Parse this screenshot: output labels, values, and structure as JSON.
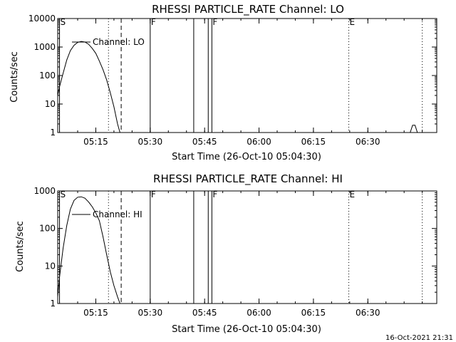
{
  "chart_data": [
    {
      "type": "line",
      "title": "RHESSI PARTICLE_RATE Channel: LO",
      "xlabel": "Start Time (26-Oct-10 05:04:30)",
      "ylabel": "Counts/sec",
      "yscale": "log",
      "ylim": [
        1,
        10000
      ],
      "xlim": [
        "05:04:30",
        "06:49:00"
      ],
      "x_ticks": [
        "05:15",
        "05:30",
        "05:45",
        "06:00",
        "06:15",
        "06:30"
      ],
      "y_ticks": [
        "1",
        "10",
        "100",
        "1000",
        "10000"
      ],
      "legend": {
        "position": "top-left",
        "entries": [
          "Channel: LO"
        ]
      },
      "series": [
        {
          "name": "Channel: LO",
          "x": [
            "05:04:30",
            "05:05:00",
            "05:06:00",
            "05:07:00",
            "05:08:00",
            "05:09:00",
            "05:10:00",
            "05:11:00",
            "05:12:00",
            "05:13:00",
            "05:14:00",
            "05:15:00",
            "05:16:00",
            "05:17:00",
            "05:18:00",
            "05:19:00",
            "05:20:00",
            "05:21:00",
            "05:21:40"
          ],
          "values": [
            20,
            40,
            120,
            350,
            750,
            1150,
            1450,
            1580,
            1500,
            1250,
            900,
            600,
            320,
            160,
            70,
            25,
            8,
            2,
            1
          ]
        },
        {
          "name": "",
          "x": [
            "06:41:40",
            "06:42:20",
            "06:43:00",
            "06:43:40"
          ],
          "values": [
            1,
            1.8,
            1.8,
            1
          ]
        }
      ],
      "event_markers": [
        {
          "label": "S",
          "time": "05:05:00",
          "style": "solid"
        },
        {
          "label": "",
          "time": "05:18:30",
          "style": "dotted"
        },
        {
          "label": "",
          "time": "05:22:00",
          "style": "dashed"
        },
        {
          "label": "F",
          "time": "05:30:00",
          "style": "solid"
        },
        {
          "label": "",
          "time": "05:42:00",
          "style": "solid"
        },
        {
          "label": "",
          "time": "05:46:00",
          "style": "solid"
        },
        {
          "label": "F",
          "time": "05:47:00",
          "style": "solid"
        },
        {
          "label": "E",
          "time": "06:24:45",
          "style": "dotted"
        },
        {
          "label": "",
          "time": "06:45:00",
          "style": "dotted"
        }
      ]
    },
    {
      "type": "line",
      "title": "RHESSI PARTICLE_RATE Channel: HI",
      "xlabel": "Start Time (26-Oct-10 05:04:30)",
      "ylabel": "Counts/sec",
      "yscale": "log",
      "ylim": [
        1,
        1000
      ],
      "xlim": [
        "05:04:30",
        "06:49:00"
      ],
      "x_ticks": [
        "05:15",
        "05:30",
        "05:45",
        "06:00",
        "06:15",
        "06:30"
      ],
      "y_ticks": [
        "1",
        "10",
        "100",
        "1000"
      ],
      "legend": {
        "position": "top-left",
        "entries": [
          "Channel: HI"
        ]
      },
      "series": [
        {
          "name": "Channel: HI",
          "x": [
            "05:04:30",
            "05:05:00",
            "05:06:00",
            "05:07:00",
            "05:08:00",
            "05:09:00",
            "05:10:00",
            "05:11:00",
            "05:12:00",
            "05:13:00",
            "05:14:00",
            "05:15:00",
            "05:16:00",
            "05:17:00",
            "05:18:00",
            "05:19:00",
            "05:20:00",
            "05:21:00",
            "05:21:40"
          ],
          "values": [
            1.5,
            5,
            30,
            120,
            330,
            560,
            680,
            700,
            640,
            510,
            380,
            260,
            160,
            60,
            20,
            7,
            3,
            1.5,
            1
          ]
        }
      ],
      "event_markers": [
        {
          "label": "S",
          "time": "05:05:00",
          "style": "solid"
        },
        {
          "label": "",
          "time": "05:18:30",
          "style": "dotted"
        },
        {
          "label": "",
          "time": "05:22:00",
          "style": "dashed"
        },
        {
          "label": "F",
          "time": "05:30:00",
          "style": "solid"
        },
        {
          "label": "",
          "time": "05:42:00",
          "style": "solid"
        },
        {
          "label": "",
          "time": "05:46:00",
          "style": "solid"
        },
        {
          "label": "F",
          "time": "05:47:00",
          "style": "solid"
        },
        {
          "label": "E",
          "time": "06:24:45",
          "style": "dotted"
        },
        {
          "label": "",
          "time": "06:45:00",
          "style": "dotted"
        }
      ]
    }
  ],
  "footer": {
    "timestamp": "16-Oct-2021 21:31"
  },
  "colors": {
    "background": "#ffffff",
    "foreground": "#000000"
  }
}
